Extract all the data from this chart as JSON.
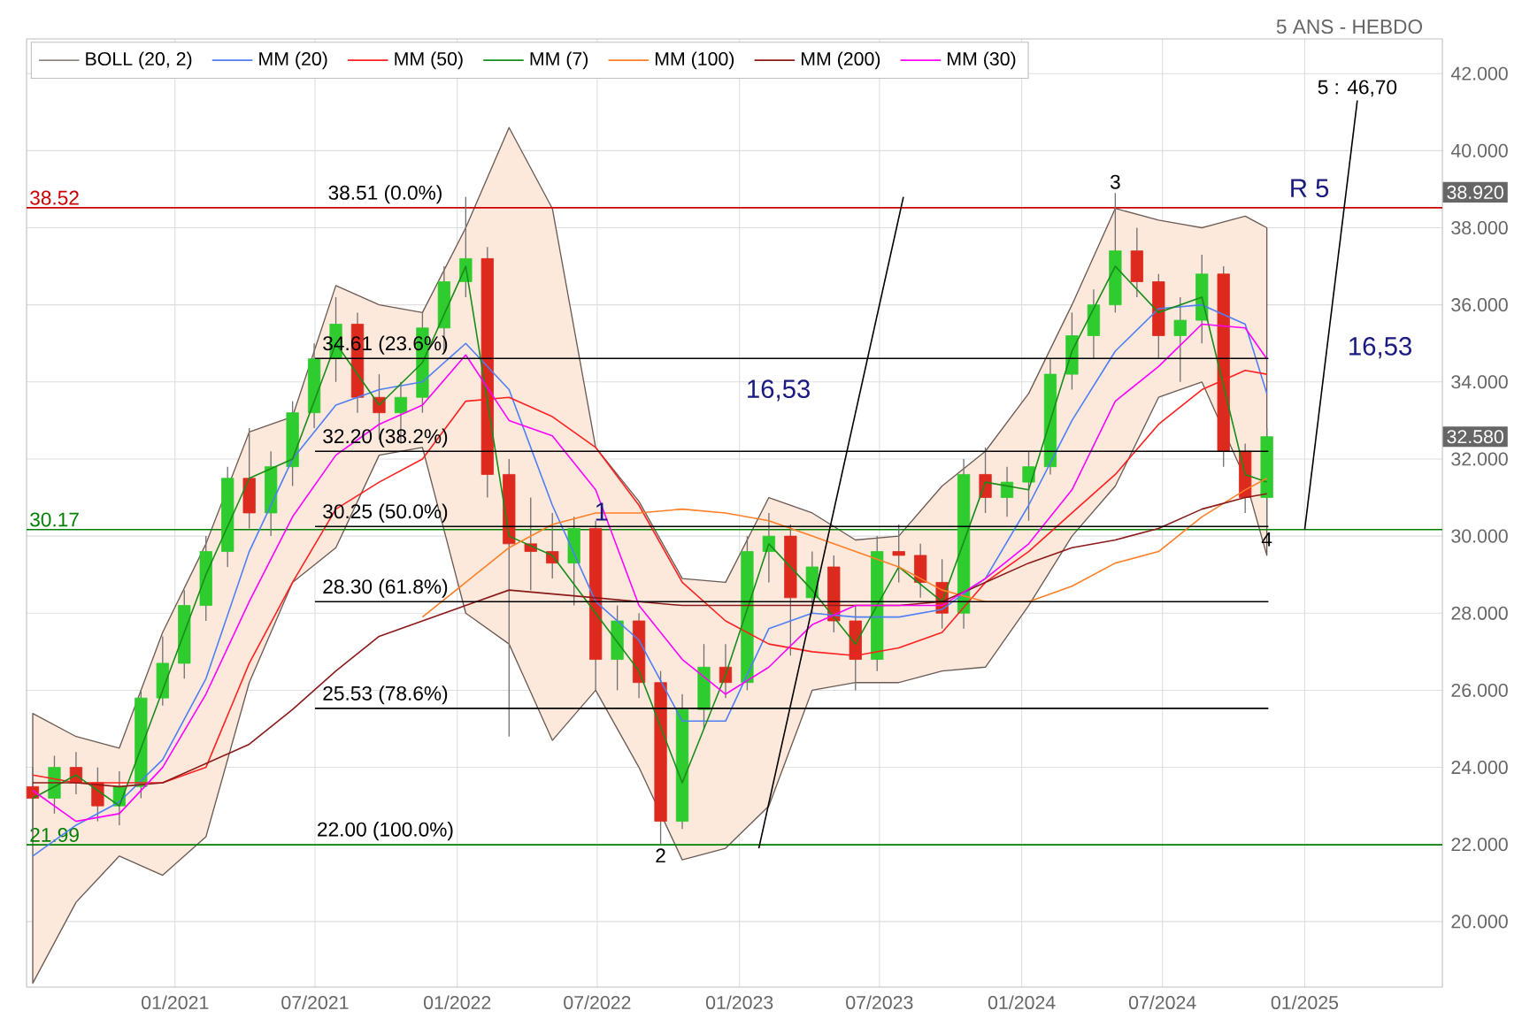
{
  "chart_data": {
    "type": "candlestick",
    "subtitle": "5 ANS - HEBDO",
    "x": [
      "2020-07-01",
      "2020-07-29",
      "2020-08-26",
      "2020-09-23",
      "2020-10-21",
      "2020-11-18",
      "2020-12-16",
      "2021-01-13",
      "2021-02-10",
      "2021-03-10",
      "2021-04-07",
      "2021-05-05",
      "2021-06-02",
      "2021-06-30",
      "2021-07-28",
      "2021-08-25",
      "2021-09-22",
      "2021-10-20",
      "2021-11-17",
      "2021-12-15",
      "2022-01-12",
      "2022-02-09",
      "2022-03-09",
      "2022-04-06",
      "2022-05-04",
      "2022-06-01",
      "2022-06-29",
      "2022-07-27",
      "2022-08-24",
      "2022-09-21",
      "2022-10-19",
      "2022-11-16",
      "2022-12-14",
      "2023-01-11",
      "2023-02-08",
      "2023-03-08",
      "2023-04-05",
      "2023-05-03",
      "2023-05-31",
      "2023-06-28",
      "2023-07-26",
      "2023-08-23",
      "2023-09-20",
      "2023-10-18",
      "2023-11-15",
      "2023-12-13",
      "2024-01-10",
      "2024-02-07",
      "2024-03-06",
      "2024-04-03",
      "2024-05-01",
      "2024-05-29",
      "2024-06-26",
      "2024-07-24",
      "2024-08-21",
      "2024-09-18",
      "2024-10-16",
      "2024-11-13"
    ],
    "ohlc": [
      [
        23.5,
        24.0,
        22.3,
        23.2
      ],
      [
        23.2,
        24.3,
        22.8,
        24.0
      ],
      [
        24.0,
        24.4,
        23.3,
        23.6
      ],
      [
        23.6,
        24.0,
        22.6,
        23.0
      ],
      [
        23.0,
        23.9,
        22.5,
        23.5
      ],
      [
        23.5,
        26.0,
        23.2,
        25.8
      ],
      [
        25.8,
        27.4,
        25.6,
        26.7
      ],
      [
        26.7,
        28.6,
        26.3,
        28.2
      ],
      [
        28.2,
        30.0,
        27.8,
        29.6
      ],
      [
        29.6,
        31.8,
        29.2,
        31.5
      ],
      [
        31.5,
        32.8,
        30.2,
        30.6
      ],
      [
        30.6,
        32.2,
        30.0,
        31.8
      ],
      [
        31.8,
        33.5,
        31.3,
        33.2
      ],
      [
        33.2,
        35.0,
        32.8,
        34.6
      ],
      [
        34.6,
        36.2,
        34.0,
        35.5
      ],
      [
        35.5,
        35.8,
        33.2,
        33.6
      ],
      [
        33.6,
        34.2,
        32.5,
        33.2
      ],
      [
        33.2,
        34.0,
        32.4,
        33.6
      ],
      [
        33.6,
        35.8,
        33.2,
        35.4
      ],
      [
        35.4,
        37.0,
        34.8,
        36.6
      ],
      [
        36.6,
        38.8,
        36.2,
        37.2
      ],
      [
        37.2,
        37.5,
        31.0,
        31.6
      ],
      [
        31.6,
        32.0,
        24.8,
        29.8
      ],
      [
        29.8,
        31.0,
        28.6,
        29.6
      ],
      [
        29.6,
        30.6,
        28.9,
        29.3
      ],
      [
        29.3,
        30.5,
        28.2,
        30.2
      ],
      [
        30.2,
        30.4,
        26.0,
        26.8
      ],
      [
        26.8,
        28.2,
        26.0,
        27.8
      ],
      [
        27.8,
        28.0,
        25.8,
        26.2
      ],
      [
        26.2,
        26.5,
        22.0,
        22.6
      ],
      [
        22.6,
        25.9,
        22.4,
        25.5
      ],
      [
        25.5,
        27.2,
        25.0,
        26.6
      ],
      [
        26.6,
        27.2,
        25.8,
        26.2
      ],
      [
        26.2,
        30.0,
        26.0,
        29.6
      ],
      [
        29.6,
        30.6,
        28.8,
        30.0
      ],
      [
        30.0,
        30.3,
        26.9,
        28.4
      ],
      [
        28.4,
        29.6,
        28.0,
        29.2
      ],
      [
        29.2,
        29.5,
        27.5,
        27.8
      ],
      [
        27.8,
        28.2,
        26.0,
        26.8
      ],
      [
        26.8,
        30.0,
        26.5,
        29.6
      ],
      [
        29.6,
        30.3,
        28.8,
        29.5
      ],
      [
        29.5,
        29.8,
        28.4,
        28.8
      ],
      [
        28.8,
        29.4,
        27.6,
        28.0
      ],
      [
        28.0,
        32.0,
        27.6,
        31.6
      ],
      [
        31.6,
        32.3,
        30.6,
        31.0
      ],
      [
        31.0,
        31.8,
        30.5,
        31.4
      ],
      [
        31.4,
        32.2,
        30.4,
        31.8
      ],
      [
        31.8,
        34.6,
        31.6,
        34.2
      ],
      [
        34.2,
        35.8,
        33.8,
        35.2
      ],
      [
        35.2,
        36.4,
        34.6,
        36.0
      ],
      [
        36.0,
        38.9,
        35.8,
        37.4
      ],
      [
        37.4,
        38.0,
        36.2,
        36.6
      ],
      [
        36.6,
        36.8,
        34.6,
        35.2
      ],
      [
        35.2,
        36.2,
        34.0,
        35.6
      ],
      [
        35.6,
        37.3,
        35.0,
        36.8
      ],
      [
        36.8,
        37.0,
        31.8,
        32.2
      ],
      [
        32.2,
        32.4,
        30.6,
        31.0
      ],
      [
        31.0,
        32.8,
        30.2,
        32.58
      ]
    ],
    "series": [
      {
        "name": "MM (20)",
        "type": "line",
        "color": "#4f7ff5",
        "x": [
          "2020-07-01",
          "2020-08-26",
          "2020-10-21",
          "2020-12-16",
          "2021-02-10",
          "2021-04-07",
          "2021-06-02",
          "2021-07-28",
          "2021-09-22",
          "2021-11-17",
          "2022-01-12",
          "2022-03-09",
          "2022-05-04",
          "2022-06-29",
          "2022-08-24",
          "2022-10-19",
          "2022-12-14",
          "2023-02-08",
          "2023-04-05",
          "2023-05-31",
          "2023-07-26",
          "2023-09-20",
          "2023-11-15",
          "2024-01-10",
          "2024-03-06",
          "2024-05-01",
          "2024-06-26",
          "2024-08-21",
          "2024-10-16",
          "2024-11-13"
        ],
        "values": [
          21.7,
          22.5,
          23.1,
          24.2,
          26.3,
          29.6,
          32.0,
          33.4,
          33.8,
          34.0,
          35.0,
          33.8,
          30.8,
          28.3,
          27.3,
          25.2,
          25.2,
          27.6,
          28.0,
          27.9,
          27.9,
          28.1,
          28.9,
          30.8,
          33.0,
          34.8,
          35.9,
          36.0,
          35.5,
          33.7
        ],
        "upper": [
          25.4,
          24.8,
          24.5,
          27.5,
          29.8,
          32.7,
          33.1,
          36.5,
          36.0,
          35.8,
          38.0,
          40.6,
          38.5,
          32.3,
          30.9,
          28.9,
          28.8,
          31.0,
          30.6,
          29.9,
          30.0,
          31.3,
          32.2,
          33.7,
          36.0,
          38.5,
          38.2,
          38.0,
          38.3,
          38.0
        ],
        "lower": [
          18.4,
          20.5,
          21.7,
          21.2,
          22.2,
          26.2,
          28.8,
          29.7,
          32.1,
          32.3,
          28.0,
          27.2,
          24.7,
          26.0,
          24.0,
          21.6,
          21.9,
          23.0,
          26.0,
          26.2,
          26.2,
          26.5,
          26.6,
          28.2,
          30.0,
          31.3,
          33.6,
          34.0,
          31.5,
          29.5
        ]
      },
      {
        "name": "MM (50)",
        "type": "line",
        "color": "#ff2020",
        "x": [
          "2020-07-01",
          "2020-08-26",
          "2020-10-21",
          "2020-12-16",
          "2021-02-10",
          "2021-04-07",
          "2021-06-02",
          "2021-07-28",
          "2021-09-22",
          "2021-11-17",
          "2022-01-12",
          "2022-03-09",
          "2022-05-04",
          "2022-06-29",
          "2022-08-24",
          "2022-10-19",
          "2022-12-14",
          "2023-02-08",
          "2023-04-05",
          "2023-05-31",
          "2023-07-26",
          "2023-09-20",
          "2023-11-15",
          "2024-01-10",
          "2024-03-06",
          "2024-05-01",
          "2024-06-26",
          "2024-08-21",
          "2024-10-16",
          "2024-11-13"
        ],
        "values": [
          23.8,
          23.6,
          23.6,
          23.6,
          24.0,
          26.7,
          28.8,
          30.7,
          31.4,
          32.0,
          33.5,
          33.6,
          33.1,
          32.3,
          30.8,
          28.8,
          27.8,
          27.2,
          27.0,
          26.9,
          27.1,
          27.5,
          28.8,
          29.6,
          30.6,
          31.6,
          32.9,
          33.8,
          34.3,
          34.2
        ]
      },
      {
        "name": "MM (7)",
        "type": "line",
        "color": "#1a8c1a",
        "x": [
          "2020-07-01",
          "2020-08-26",
          "2020-10-21",
          "2020-12-16",
          "2021-02-10",
          "2021-04-07",
          "2021-06-02",
          "2021-07-28",
          "2021-09-22",
          "2021-11-17",
          "2022-01-12",
          "2022-03-09",
          "2022-05-04",
          "2022-06-29",
          "2022-08-24",
          "2022-10-19",
          "2022-12-14",
          "2023-02-08",
          "2023-04-05",
          "2023-05-31",
          "2023-07-26",
          "2023-09-20",
          "2023-11-15",
          "2024-01-10",
          "2024-03-06",
          "2024-05-01",
          "2024-06-26",
          "2024-08-21",
          "2024-10-16",
          "2024-11-13"
        ],
        "values": [
          23.2,
          23.8,
          23.0,
          26.0,
          29.0,
          31.5,
          32.0,
          35.0,
          33.4,
          34.5,
          37.0,
          30.0,
          29.5,
          28.0,
          26.5,
          23.6,
          26.4,
          29.8,
          28.6,
          27.2,
          29.2,
          28.3,
          31.4,
          31.2,
          34.8,
          37.0,
          35.8,
          36.2,
          31.6,
          31.4
        ]
      },
      {
        "name": "MM (100)",
        "type": "line",
        "color": "#ff7f27",
        "x": [
          "2021-11-17",
          "2022-01-12",
          "2022-03-09",
          "2022-05-04",
          "2022-06-29",
          "2022-08-24",
          "2022-10-19",
          "2022-12-14",
          "2023-02-08",
          "2023-04-05",
          "2023-05-31",
          "2023-07-26",
          "2023-09-20",
          "2023-11-15",
          "2024-01-10",
          "2024-03-06",
          "2024-05-01",
          "2024-06-26",
          "2024-08-21",
          "2024-10-16",
          "2024-11-13"
        ],
        "values": [
          27.9,
          28.8,
          29.7,
          30.3,
          30.6,
          30.6,
          30.7,
          30.6,
          30.4,
          30.0,
          29.6,
          29.2,
          28.6,
          28.3,
          28.3,
          28.7,
          29.3,
          29.6,
          30.5,
          31.2,
          31.5
        ]
      },
      {
        "name": "MM (200)",
        "type": "line",
        "color": "#8b1a1a",
        "x": [
          "2020-07-01",
          "2020-08-26",
          "2020-10-21",
          "2020-12-16",
          "2021-02-10",
          "2021-04-07",
          "2021-06-02",
          "2021-07-28",
          "2021-09-22",
          "2021-11-17",
          "2022-01-12",
          "2022-03-09",
          "2022-05-04",
          "2022-06-29",
          "2022-08-24",
          "2022-10-19",
          "2022-12-14",
          "2023-02-08",
          "2023-04-05",
          "2023-05-31",
          "2023-07-26",
          "2023-09-20",
          "2023-11-15",
          "2024-01-10",
          "2024-03-06",
          "2024-05-01",
          "2024-06-26",
          "2024-08-21",
          "2024-10-16",
          "2024-11-13"
        ],
        "values": [
          23.6,
          23.6,
          23.5,
          23.6,
          24.1,
          24.6,
          25.5,
          26.5,
          27.4,
          27.8,
          28.2,
          28.6,
          28.5,
          28.4,
          28.3,
          28.2,
          28.2,
          28.2,
          28.2,
          28.2,
          28.2,
          28.3,
          28.8,
          29.3,
          29.7,
          29.9,
          30.2,
          30.7,
          31.0,
          31.1
        ]
      },
      {
        "name": "MM (30)",
        "type": "line",
        "color": "#ff00ff",
        "x": [
          "2020-07-01",
          "2020-08-26",
          "2020-10-21",
          "2020-12-16",
          "2021-02-10",
          "2021-04-07",
          "2021-06-02",
          "2021-07-28",
          "2021-09-22",
          "2021-11-17",
          "2022-01-12",
          "2022-03-09",
          "2022-05-04",
          "2022-06-29",
          "2022-08-24",
          "2022-10-19",
          "2022-12-14",
          "2023-02-08",
          "2023-04-05",
          "2023-05-31",
          "2023-07-26",
          "2023-09-20",
          "2023-11-15",
          "2024-01-10",
          "2024-03-06",
          "2024-05-01",
          "2024-06-26",
          "2024-08-21",
          "2024-10-16",
          "2024-11-13"
        ],
        "values": [
          23.4,
          22.6,
          22.8,
          24.0,
          25.9,
          28.3,
          30.5,
          32.1,
          32.9,
          33.4,
          34.7,
          33.0,
          32.6,
          31.2,
          28.2,
          26.8,
          25.9,
          26.6,
          27.7,
          28.2,
          28.2,
          28.2,
          28.9,
          29.8,
          31.2,
          33.5,
          34.4,
          35.5,
          35.4,
          34.6
        ]
      },
      {
        "type": "line",
        "color": "#000000",
        "x": [
          "2021-07-01",
          "2024-11-15"
        ],
        "values": [
          34.61,
          34.61
        ]
      },
      {
        "type": "line",
        "color": "#000000",
        "x": [
          "2021-07-01",
          "2024-11-15"
        ],
        "values": [
          32.2,
          32.2
        ]
      },
      {
        "type": "line",
        "color": "#000000",
        "x": [
          "2021-07-01",
          "2024-11-15"
        ],
        "values": [
          30.25,
          30.25
        ]
      },
      {
        "type": "line",
        "color": "#000000",
        "x": [
          "2021-07-01",
          "2024-11-15"
        ],
        "values": [
          28.3,
          28.3
        ]
      },
      {
        "type": "line",
        "color": "#000000",
        "x": [
          "2021-07-01",
          "2024-11-15"
        ],
        "values": [
          25.53,
          25.53
        ]
      },
      {
        "type": "line",
        "color": "#000000",
        "x": [
          "2023-01-26",
          "2023-08-01"
        ],
        "values": [
          21.9,
          38.8
        ]
      },
      {
        "type": "line",
        "color": "#000000",
        "x": [
          "2025-01-01",
          "2025-03-10"
        ],
        "values": [
          30.17,
          41.3
        ]
      }
    ],
    "ref_lines": [
      {
        "axis": "y",
        "value": 38.52,
        "label": "38.52",
        "color": "#cc0000"
      },
      {
        "axis": "y",
        "value": 30.17,
        "label": "30.17",
        "color": "#008000"
      },
      {
        "axis": "y",
        "value": 21.99,
        "label": "21.99",
        "color": "#008000"
      }
    ],
    "annotations": [
      {
        "text": "38.51  (0.0%)",
        "x": "2021-09-30",
        "y": 38.52
      },
      {
        "text": "34.61  (23.6%)",
        "x": "2021-09-30",
        "y": 34.61
      },
      {
        "text": "32.20  (38.2%)",
        "x": "2021-09-30",
        "y": 32.2
      },
      {
        "text": "30.25  (50.0%)",
        "x": "2021-09-30",
        "y": 30.25
      },
      {
        "text": "28.30  (61.8%)",
        "x": "2021-09-30",
        "y": 28.3
      },
      {
        "text": "25.53  (78.6%)",
        "x": "2021-09-30",
        "y": 25.53
      },
      {
        "text": "22.00  (100.0%)",
        "x": "2021-09-30",
        "y": 22.0
      },
      "1",
      {
        "text": "2",
        "x": "2022-09-21",
        "y": 22.0
      },
      {
        "text": "3",
        "x": "2024-05-01",
        "y": 38.9
      },
      {
        "text": "4",
        "x": "2024-11-13",
        "y": 30.2
      },
      "R 5",
      "16,53",
      "16,53",
      {
        "text": "5 : 46,70",
        "x": "2025-03-10",
        "y": 41.3
      },
      {
        "text": "38.920",
        "y": 38.92
      },
      {
        "text": "32.580",
        "y": 32.58
      }
    ],
    "xlim": [
      "2020-06-23",
      "2025-06-28"
    ],
    "ylim": [
      18.3,
      42.9
    ],
    "xticks": [
      {
        "value": "2021-01",
        "label": "01/2021"
      },
      {
        "value": "2021-07",
        "label": "07/2021"
      },
      {
        "value": "2022-01",
        "label": "01/2022"
      },
      {
        "value": "2022-07",
        "label": "07/2022"
      },
      {
        "value": "2023-01",
        "label": "01/2023"
      },
      {
        "value": "2023-07",
        "label": "07/2023"
      },
      {
        "value": "2024-01",
        "label": "01/2024"
      },
      {
        "value": "2024-07",
        "label": "07/2024"
      },
      {
        "value": "2025-01",
        "label": "01/2025"
      }
    ],
    "yticks": [
      {
        "value": 20,
        "label": "20.000"
      },
      {
        "value": 22,
        "label": "22.000"
      },
      {
        "value": 24,
        "label": "24.000"
      },
      {
        "value": 26,
        "label": "26.000"
      },
      {
        "value": 28,
        "label": "28.000"
      },
      {
        "value": 30,
        "label": "30.000"
      },
      {
        "value": 32,
        "label": "32.000"
      },
      {
        "value": 34,
        "label": "34.000"
      },
      {
        "value": 36,
        "label": "36.000"
      },
      {
        "value": 38,
        "label": "38.000"
      },
      {
        "value": 40,
        "label": "40.000"
      },
      {
        "value": 42,
        "label": "42.000"
      }
    ],
    "grid": true,
    "legend": "top left",
    "legend_title": "BOLL (20, 2)"
  }
}
